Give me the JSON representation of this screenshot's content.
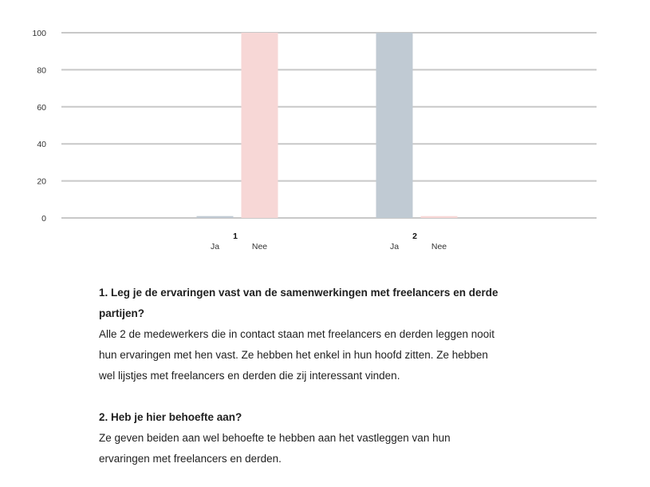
{
  "chart_data": {
    "type": "bar",
    "ylim": [
      0,
      100
    ],
    "yticks": [
      0,
      20,
      40,
      60,
      80,
      100
    ],
    "grid": true,
    "groups": [
      {
        "label": "1",
        "bars": [
          {
            "label": "Ja",
            "value": 1
          },
          {
            "label": "Nee",
            "value": 100
          }
        ]
      },
      {
        "label": "2",
        "bars": [
          {
            "label": "Ja",
            "value": 100
          },
          {
            "label": "Nee",
            "value": 1
          }
        ]
      }
    ],
    "colors": {
      "Ja": "#c0cad3",
      "Nee": "#f7d7d6"
    },
    "gridline_color": "#c8c8c8",
    "axis_text_color": "#333333"
  },
  "questions": [
    {
      "heading_lines": [
        "1. Leg je de ervaringen vast van de samenwerkingen met freelancers en derde",
        "partijen?"
      ],
      "body_lines": [
        "Alle 2 de medewerkers die in contact staan met freelancers en derden leggen nooit",
        "hun ervaringen met hen vast. Ze hebben het enkel in hun hoofd zitten. Ze hebben",
        "wel lijstjes met freelancers en derden die zij interessant vinden."
      ]
    },
    {
      "heading_lines": [
        "2. Heb je hier behoefte aan?"
      ],
      "body_lines": [
        "Ze geven beiden aan wel behoefte te hebben aan het vastleggen van hun",
        "ervaringen met freelancers en derden."
      ]
    }
  ]
}
